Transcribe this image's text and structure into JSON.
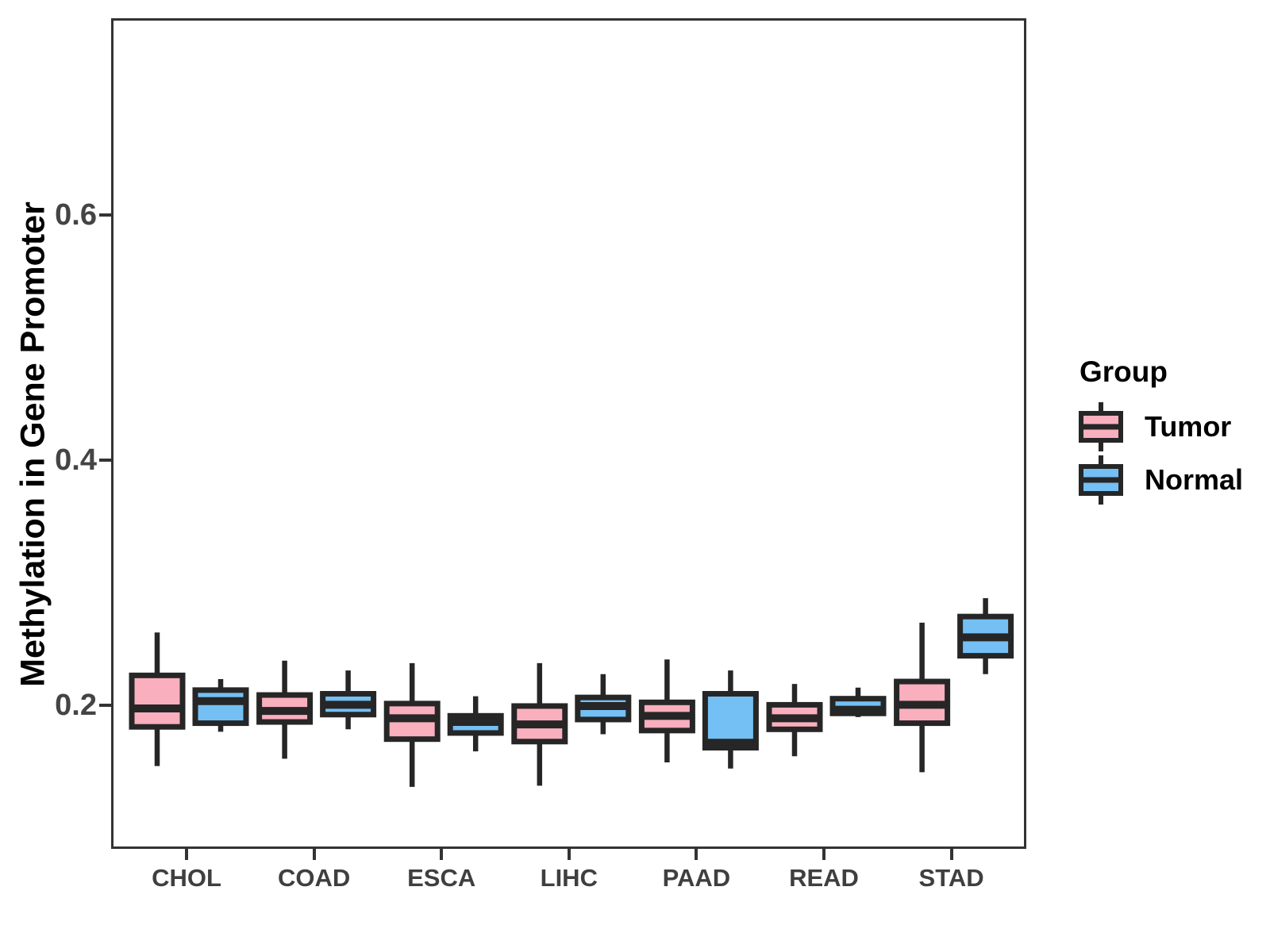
{
  "chart_data": {
    "type": "boxplot",
    "title": "",
    "xlabel": "",
    "ylabel": "Methylation in Gene Promoter",
    "categories": [
      "CHOL",
      "COAD",
      "ESCA",
      "LIHC",
      "PAAD",
      "READ",
      "STAD"
    ],
    "y_ticks": [
      "0.2",
      "0.4",
      "0.6"
    ],
    "y_tick_values": [
      0.2,
      0.4,
      0.6
    ],
    "ylim": [
      0.08,
      0.76
    ],
    "grid": false,
    "legend": {
      "title": "Group",
      "position": "right",
      "items": [
        {
          "label": "Tumor",
          "color": "#FAAFBE"
        },
        {
          "label": "Normal",
          "color": "#74BFF3"
        }
      ]
    },
    "series": [
      {
        "name": "Tumor",
        "color": "#FAAFBE",
        "boxes": [
          {
            "category": "CHOL",
            "whisker_low": 0.152,
            "q1": 0.184,
            "median": 0.199,
            "q3": 0.226,
            "whisker_high": 0.261
          },
          {
            "category": "COAD",
            "whisker_low": 0.158,
            "q1": 0.188,
            "median": 0.197,
            "q3": 0.21,
            "whisker_high": 0.238
          },
          {
            "category": "ESCA",
            "whisker_low": 0.135,
            "q1": 0.174,
            "median": 0.191,
            "q3": 0.203,
            "whisker_high": 0.236
          },
          {
            "category": "LIHC",
            "whisker_low": 0.136,
            "q1": 0.172,
            "median": 0.186,
            "q3": 0.201,
            "whisker_high": 0.236
          },
          {
            "category": "PAAD",
            "whisker_low": 0.155,
            "q1": 0.181,
            "median": 0.193,
            "q3": 0.204,
            "whisker_high": 0.239
          },
          {
            "category": "READ",
            "whisker_low": 0.16,
            "q1": 0.182,
            "median": 0.191,
            "q3": 0.202,
            "whisker_high": 0.219
          },
          {
            "category": "STAD",
            "whisker_low": 0.147,
            "q1": 0.187,
            "median": 0.202,
            "q3": 0.221,
            "whisker_high": 0.269
          }
        ]
      },
      {
        "name": "Normal",
        "color": "#74BFF3",
        "boxes": [
          {
            "category": "CHOL",
            "whisker_low": 0.18,
            "q1": 0.187,
            "median": 0.205,
            "q3": 0.214,
            "whisker_high": 0.223
          },
          {
            "category": "COAD",
            "whisker_low": 0.182,
            "q1": 0.194,
            "median": 0.202,
            "q3": 0.211,
            "whisker_high": 0.23
          },
          {
            "category": "ESCA",
            "whisker_low": 0.164,
            "q1": 0.179,
            "median": 0.188,
            "q3": 0.193,
            "whisker_high": 0.209
          },
          {
            "category": "LIHC",
            "whisker_low": 0.178,
            "q1": 0.19,
            "median": 0.201,
            "q3": 0.208,
            "whisker_high": 0.227
          },
          {
            "category": "PAAD",
            "whisker_low": 0.15,
            "q1": 0.167,
            "median": 0.171,
            "q3": 0.211,
            "whisker_high": 0.23
          },
          {
            "category": "READ",
            "whisker_low": 0.192,
            "q1": 0.195,
            "median": 0.198,
            "q3": 0.207,
            "whisker_high": 0.216
          },
          {
            "category": "STAD",
            "whisker_low": 0.227,
            "q1": 0.242,
            "median": 0.257,
            "q3": 0.274,
            "whisker_high": 0.289
          }
        ]
      }
    ],
    "colors": {
      "tumor_fill": "#FAAFBE",
      "normal_fill": "#74BFF3",
      "box_stroke": "#262626",
      "axis": "#333333",
      "axis_text": "#444444",
      "title_text": "#000000"
    }
  }
}
